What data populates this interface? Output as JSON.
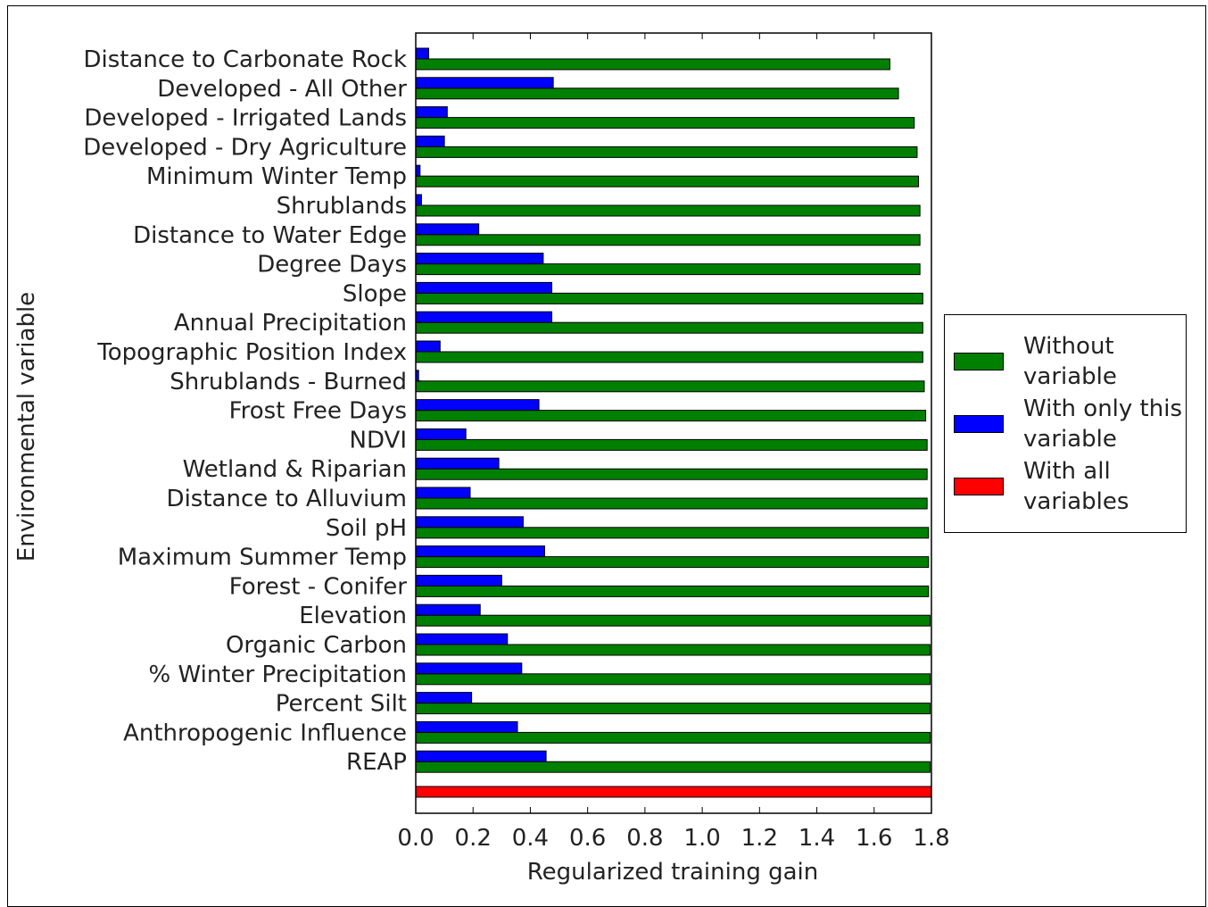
{
  "chart_data": {
    "type": "bar",
    "orientation": "horizontal",
    "xlabel": "Regularized training gain",
    "ylabel": "Environmental variable",
    "xlim": [
      0.0,
      1.8
    ],
    "xticks": [
      "0.0",
      "0.2",
      "0.4",
      "0.6",
      "0.8",
      "1.0",
      "1.2",
      "1.4",
      "1.6",
      "1.8"
    ],
    "legend_position": "right",
    "grid": false,
    "categories": [
      "Distance to Carbonate Rock",
      "Developed - All Other",
      "Developed - Irrigated Lands",
      "Developed - Dry Agriculture",
      "Minimum Winter Temp",
      "Shrublands",
      "Distance to Water Edge",
      "Degree Days",
      "Slope",
      "Annual Precipitation",
      "Topographic Position Index",
      "Shrublands - Burned",
      "Frost Free Days",
      "NDVI",
      "Wetland & Riparian",
      "Distance to Alluvium",
      "Soil pH",
      "Maximum Summer Temp",
      "Forest - Conifer",
      "Elevation",
      "Organic Carbon",
      "% Winter Precipitation",
      "Percent Silt",
      "Anthropogenic Influence",
      "REAP"
    ],
    "series": [
      {
        "name": "Without variable",
        "color": "#008000",
        "values": [
          1.655,
          1.685,
          1.74,
          1.75,
          1.755,
          1.76,
          1.76,
          1.76,
          1.77,
          1.77,
          1.77,
          1.775,
          1.78,
          1.785,
          1.785,
          1.785,
          1.79,
          1.79,
          1.79,
          1.795,
          1.795,
          1.795,
          1.795,
          1.795,
          1.795
        ]
      },
      {
        "name": "With only this variable",
        "color": "#0000ff",
        "values": [
          0.045,
          0.48,
          0.11,
          0.1,
          0.015,
          0.02,
          0.22,
          0.445,
          0.475,
          0.475,
          0.085,
          0.01,
          0.43,
          0.175,
          0.29,
          0.19,
          0.375,
          0.45,
          0.3,
          0.225,
          0.32,
          0.37,
          0.195,
          0.355,
          0.455
        ]
      },
      {
        "name": "With all variables",
        "color": "#ff0000",
        "value": 1.8
      }
    ]
  },
  "legend": {
    "items": [
      {
        "label": "Without variable",
        "color": "#008000"
      },
      {
        "label": "With only this variable",
        "color": "#0000ff"
      },
      {
        "label": "With all variables",
        "color": "#ff0000"
      }
    ]
  }
}
